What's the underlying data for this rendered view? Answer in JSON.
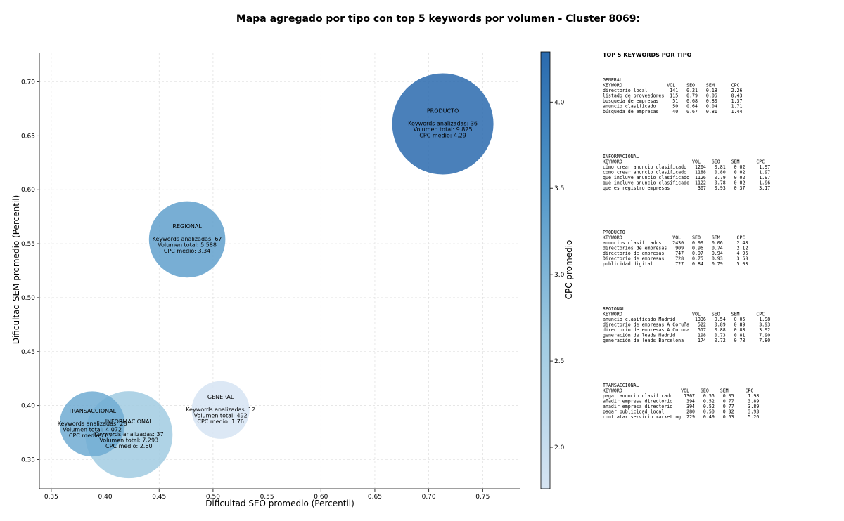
{
  "chart_data": {
    "type": "scatter",
    "title": "Mapa agregado por tipo con top 5 keywords por volumen - Cluster 8069:",
    "xlabel": "Dificultad SEO promedio (Percentil)",
    "ylabel": "Dificultad SEM promedio (Percentil)",
    "xlim": [
      0.339,
      0.785
    ],
    "ylim": [
      0.323,
      0.727
    ],
    "xticks": [
      {
        "v": 0.35,
        "label": "0.35"
      },
      {
        "v": 0.4,
        "label": "0.40"
      },
      {
        "v": 0.45,
        "label": "0.45"
      },
      {
        "v": 0.5,
        "label": "0.50"
      },
      {
        "v": 0.55,
        "label": "0.55"
      },
      {
        "v": 0.6,
        "label": "0.60"
      },
      {
        "v": 0.65,
        "label": "0.65"
      },
      {
        "v": 0.7,
        "label": "0.70"
      },
      {
        "v": 0.75,
        "label": "0.75"
      }
    ],
    "yticks": [
      {
        "v": 0.35,
        "label": "0.35"
      },
      {
        "v": 0.4,
        "label": "0.40"
      },
      {
        "v": 0.45,
        "label": "0.45"
      },
      {
        "v": 0.5,
        "label": "0.50"
      },
      {
        "v": 0.55,
        "label": "0.55"
      },
      {
        "v": 0.6,
        "label": "0.60"
      },
      {
        "v": 0.65,
        "label": "0.65"
      },
      {
        "v": 0.7,
        "label": "0.70"
      }
    ],
    "grid": true,
    "colorbar": {
      "label": "CPC promedio",
      "range": [
        1.76,
        4.29
      ],
      "ticks": [
        {
          "v": 2.0,
          "label": "2.0"
        },
        {
          "v": 2.5,
          "label": "2.5"
        },
        {
          "v": 3.0,
          "label": "3.0"
        },
        {
          "v": 3.5,
          "label": "3.5"
        },
        {
          "v": 4.0,
          "label": "4.0"
        }
      ]
    },
    "bubbles": [
      {
        "type": "GENERAL",
        "x": 0.507,
        "y": 0.396,
        "keywords": 12,
        "volume": 492,
        "cpc": 1.76,
        "lines": [
          "Keywords analizadas: 12",
          "Volumen total: 492",
          "CPC medio: 1.76"
        ]
      },
      {
        "type": "INFORMACIONAL",
        "x": 0.422,
        "y": 0.373,
        "keywords": 37,
        "volume": 7293,
        "cpc": 2.6,
        "lines": [
          "Keywords analizadas: 37",
          "Volumen total: 7.293",
          "CPC medio: 2.60"
        ]
      },
      {
        "type": "TRANSACCIONAL",
        "x": 0.388,
        "y": 0.383,
        "keywords": 28,
        "volume": 4072,
        "cpc": 3.16,
        "lines": [
          "Keywords analizadas: 28",
          "Volumen total: 4.072",
          "CPC medio: 3.16"
        ]
      },
      {
        "type": "REGIONAL",
        "x": 0.476,
        "y": 0.554,
        "keywords": 67,
        "volume": 5588,
        "cpc": 3.34,
        "lines": [
          "Keywords analizadas: 67",
          "Volumen total: 5.588",
          "CPC medio: 3.34"
        ]
      },
      {
        "type": "PRODUCTO",
        "x": 0.713,
        "y": 0.661,
        "keywords": 36,
        "volume": 9825,
        "cpc": 4.29,
        "lines": [
          "Keywords analizadas: 36",
          "Volumen total: 9.825",
          "CPC medio: 4.29"
        ]
      }
    ]
  },
  "top_panel": {
    "title": "TOP 5 KEYWORDS POR TIPO",
    "groups": [
      {
        "name": "GENERAL",
        "header": "KEYWORD                VOL    SEO    SEM      CPC",
        "rows": [
          "directorio local        141   0.21   0.18     2.26",
          "listado de proveedores  115   0.79   0.06     0.43",
          "busqueda de empresas     51   0.68   0.80     1.37",
          "anuncio clasificado      50   0.64   0.04     1.71",
          "búsqueda de empresas     40   0.67   0.81     1.44"
        ]
      },
      {
        "name": "INFORMACIONAL",
        "header": "KEYWORD                         VOL    SEO    SEM      CPC",
        "rows": [
          "cómo crear anuncio clasificado   1204   0.81   0.02     1.97",
          "como crear anuncio clasificado   1188   0.80   0.02     1.97",
          "que incluye anuncio clasificado  1126   0.79   0.02     1.97",
          "qué incluye anuncio clasificado  1122   0.78   0.02     1.96",
          "que es registro empresas          307   0.93   0.37     3.17"
        ]
      },
      {
        "name": "PRODUCTO",
        "header": "KEYWORD                  VOL    SEO    SEM      CPC",
        "rows": [
          "anuncios clasificados    2430   0.99   0.06     2.48",
          "directorios de empresas   909   0.96   0.74     2.12",
          "directorio de empresas    747   0.97   0.94     4.96",
          "Directorio de empresas    728   0.75   0.93     3.50",
          "publicidad digital        727   0.84   0.79     5.03"
        ]
      },
      {
        "name": "REGIONAL",
        "header": "KEYWORD                         VOL    SEO    SEM      CPC",
        "rows": [
          "anuncio clasificado Madrid       1336   0.54   0.05     1.98",
          "directorio de empresas A Coruña   522   0.89   0.89     3.93",
          "directorio de empresas A Coruna   517   0.88   0.88     3.92",
          "generación de leads Madrid        198   0.73   0.81     7.90",
          "generación de leads Barcelona     174   0.72   0.78     7.80"
        ]
      },
      {
        "name": "TRANSACCIONAL",
        "header": "KEYWORD                     VOL    SEO    SEM      CPC",
        "rows": [
          "pagar anuncio clasificado    1367   0.55   0.05     1.98",
          "añadir empresa directorio     394   0.52   0.77     3.89",
          "anadir empresa directorio     394   0.52   0.77     3.89",
          "pagar publicidad local        280   0.50   0.32     3.93",
          "contratar servicio marketing  229   0.49   0.63     5.26"
        ]
      }
    ]
  }
}
